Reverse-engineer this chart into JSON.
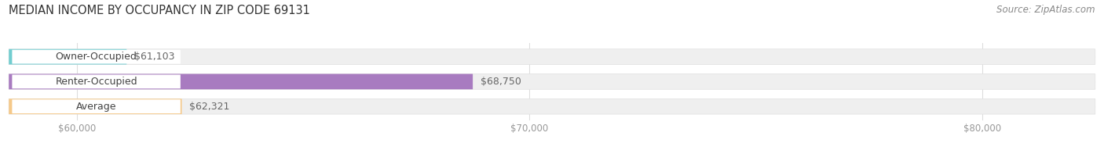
{
  "title": "MEDIAN INCOME BY OCCUPANCY IN ZIP CODE 69131",
  "source": "Source: ZipAtlas.com",
  "categories": [
    "Owner-Occupied",
    "Renter-Occupied",
    "Average"
  ],
  "values": [
    61103,
    68750,
    62321
  ],
  "labels": [
    "$61,103",
    "$68,750",
    "$62,321"
  ],
  "bar_colors": [
    "#72cdd0",
    "#a87bc0",
    "#f5c98a"
  ],
  "bar_bg_color": "#efefef",
  "bar_border_color": "#e0e0e0",
  "label_box_color": "#ffffff",
  "xlim_min": 58500,
  "xlim_max": 82500,
  "data_min": 58500,
  "xticks": [
    60000,
    70000,
    80000
  ],
  "xtick_labels": [
    "$60,000",
    "$70,000",
    "$80,000"
  ],
  "title_fontsize": 10.5,
  "source_fontsize": 8.5,
  "label_fontsize": 9,
  "value_fontsize": 9,
  "bar_height": 0.62,
  "figsize": [
    14.06,
    1.97
  ],
  "dpi": 100
}
